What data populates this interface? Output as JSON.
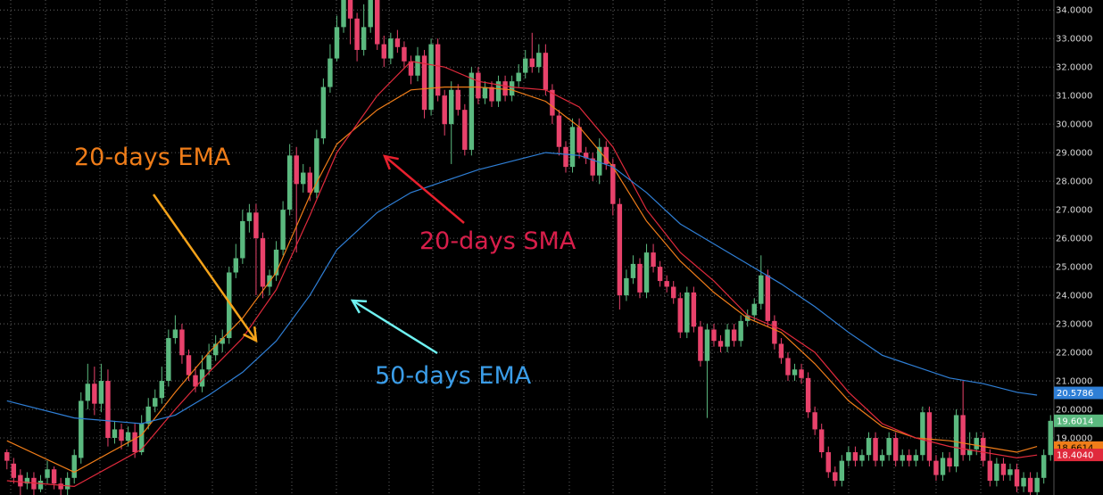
{
  "chart_data": {
    "type": "candlestick",
    "grid": true,
    "y_axis_side": "right",
    "ylim": [
      17.0,
      34.35
    ],
    "y_ticks": [
      {
        "value": 34,
        "label": "34.0000"
      },
      {
        "value": 33,
        "label": "33.0000"
      },
      {
        "value": 32,
        "label": "32.0000"
      },
      {
        "value": 31,
        "label": "31.0000"
      },
      {
        "value": 30,
        "label": "30.0000"
      },
      {
        "value": 29,
        "label": "29.0000"
      },
      {
        "value": 28,
        "label": "28.0000"
      },
      {
        "value": 27,
        "label": "27.0000"
      },
      {
        "value": 26,
        "label": "26.0000"
      },
      {
        "value": 25,
        "label": "25.0000"
      },
      {
        "value": 24,
        "label": "24.0000"
      },
      {
        "value": 23,
        "label": "23.0000"
      },
      {
        "value": 22,
        "label": "22.0000"
      },
      {
        "value": 21,
        "label": "21.0000"
      },
      {
        "value": 20,
        "label": "20.0000"
      },
      {
        "value": 19,
        "label": "19.0000"
      }
    ],
    "colors": {
      "up": "#5bb97f",
      "down": "#e8426b",
      "grid": "#d8d8d8",
      "sma20": "#e02a3c",
      "ema20": "#f07d19",
      "ema50": "#2f7fd6",
      "arrow_ema20": "#f5a31a",
      "arrow_sma20": "#e8202e",
      "arrow_ema50": "#6ff2f2"
    },
    "candles": [
      [
        18.5,
        18.2,
        18.6,
        17.9
      ],
      [
        18.1,
        17.6,
        18.3,
        17.4
      ],
      [
        17.7,
        17.3,
        17.9,
        17.0
      ],
      [
        17.4,
        17.6,
        17.8,
        17.2
      ],
      [
        17.6,
        17.2,
        17.8,
        17.0
      ],
      [
        17.2,
        17.5,
        17.7,
        17.1
      ],
      [
        17.6,
        17.9,
        18.2,
        17.4
      ],
      [
        17.9,
        17.4,
        18.0,
        17.2
      ],
      [
        17.4,
        17.2,
        17.6,
        17.0
      ],
      [
        17.2,
        17.6,
        17.8,
        17.0
      ],
      [
        17.6,
        18.4,
        18.6,
        17.4
      ],
      [
        18.3,
        20.3,
        20.6,
        18.1
      ],
      [
        20.3,
        20.9,
        21.6,
        20.0
      ],
      [
        20.9,
        20.2,
        21.5,
        19.8
      ],
      [
        20.2,
        21.0,
        21.6,
        19.9
      ],
      [
        21.0,
        19.0,
        21.4,
        18.7
      ],
      [
        19.0,
        19.3,
        19.6,
        18.8
      ],
      [
        19.3,
        18.9,
        19.5,
        18.6
      ],
      [
        18.9,
        19.2,
        19.4,
        18.7
      ],
      [
        19.2,
        18.5,
        19.5,
        18.3
      ],
      [
        18.5,
        19.5,
        19.8,
        18.4
      ],
      [
        19.5,
        20.1,
        20.4,
        19.3
      ],
      [
        20.1,
        20.4,
        20.7,
        19.9
      ],
      [
        20.4,
        21.0,
        21.5,
        20.2
      ],
      [
        21.0,
        22.5,
        22.8,
        20.8
      ],
      [
        22.5,
        22.8,
        23.3,
        22.3
      ],
      [
        22.8,
        21.9,
        23.0,
        21.6
      ],
      [
        21.9,
        21.2,
        22.1,
        21.0
      ],
      [
        21.2,
        20.8,
        21.5,
        20.6
      ],
      [
        20.8,
        21.4,
        21.9,
        20.6
      ],
      [
        21.4,
        21.9,
        22.3,
        21.2
      ],
      [
        21.9,
        22.3,
        22.6,
        21.7
      ],
      [
        22.3,
        22.5,
        22.8,
        22.0
      ],
      [
        22.5,
        24.8,
        25.0,
        22.3
      ],
      [
        24.8,
        25.3,
        25.8,
        24.6
      ],
      [
        25.3,
        26.6,
        27.0,
        25.1
      ],
      [
        26.6,
        26.9,
        27.2,
        26.2
      ],
      [
        26.9,
        26.0,
        27.2,
        24.0
      ],
      [
        26.0,
        24.3,
        26.2,
        23.9
      ],
      [
        24.3,
        24.7,
        24.9,
        24.0
      ],
      [
        24.7,
        25.6,
        25.9,
        24.5
      ],
      [
        25.6,
        27.0,
        27.3,
        25.4
      ],
      [
        27.0,
        28.9,
        29.3,
        26.8
      ],
      [
        28.9,
        27.9,
        29.2,
        25.5
      ],
      [
        27.9,
        28.3,
        28.6,
        27.6
      ],
      [
        28.3,
        27.6,
        28.5,
        27.3
      ],
      [
        27.6,
        29.5,
        29.8,
        27.4
      ],
      [
        29.5,
        31.3,
        31.6,
        29.3
      ],
      [
        31.3,
        32.3,
        32.8,
        31.1
      ],
      [
        32.3,
        33.4,
        33.8,
        32.2
      ],
      [
        33.4,
        34.5,
        34.8,
        33.2
      ],
      [
        34.5,
        33.7,
        34.7,
        32.8
      ],
      [
        33.7,
        32.6,
        33.9,
        32.2
      ],
      [
        32.6,
        33.4,
        34.2,
        32.4
      ],
      [
        33.4,
        34.8,
        35.0,
        33.2
      ],
      [
        34.8,
        32.8,
        35.0,
        32.6
      ],
      [
        32.8,
        32.3,
        33.1,
        32.0
      ],
      [
        32.3,
        33.0,
        33.2,
        32.1
      ],
      [
        33.0,
        32.7,
        33.3,
        32.5
      ],
      [
        32.7,
        32.2,
        32.9,
        32.0
      ],
      [
        32.2,
        31.7,
        32.4,
        31.4
      ],
      [
        31.7,
        32.4,
        32.7,
        31.5
      ],
      [
        32.4,
        30.5,
        32.6,
        30.2
      ],
      [
        30.5,
        32.8,
        33.0,
        30.3
      ],
      [
        32.8,
        31.0,
        33.0,
        30.8
      ],
      [
        31.0,
        30.0,
        31.2,
        29.6
      ],
      [
        30.0,
        31.2,
        31.5,
        28.6
      ],
      [
        31.2,
        30.5,
        31.4,
        30.3
      ],
      [
        30.5,
        29.1,
        30.7,
        28.9
      ],
      [
        29.1,
        31.8,
        32.0,
        28.9
      ],
      [
        31.8,
        30.9,
        32.0,
        30.7
      ],
      [
        30.9,
        31.3,
        31.5,
        30.7
      ],
      [
        31.3,
        30.8,
        31.5,
        30.6
      ],
      [
        30.8,
        31.5,
        31.7,
        30.6
      ],
      [
        31.5,
        31.0,
        31.7,
        30.8
      ],
      [
        31.0,
        31.5,
        31.7,
        30.8
      ],
      [
        31.5,
        31.8,
        32.1,
        31.3
      ],
      [
        31.8,
        32.3,
        32.6,
        31.6
      ],
      [
        32.3,
        32.0,
        33.2,
        31.8
      ],
      [
        32.0,
        32.5,
        32.8,
        31.8
      ],
      [
        32.5,
        31.2,
        32.8,
        31.0
      ],
      [
        31.2,
        30.3,
        31.4,
        30.0
      ],
      [
        30.3,
        29.2,
        30.5,
        28.9
      ],
      [
        29.2,
        28.5,
        29.4,
        28.3
      ],
      [
        28.5,
        29.9,
        30.2,
        28.3
      ],
      [
        29.9,
        29.0,
        30.2,
        28.8
      ],
      [
        29.0,
        28.8,
        29.2,
        28.6
      ],
      [
        28.8,
        28.2,
        29.0,
        28.0
      ],
      [
        28.2,
        29.2,
        29.5,
        27.9
      ],
      [
        29.2,
        28.6,
        29.4,
        28.4
      ],
      [
        28.6,
        27.2,
        28.8,
        26.8
      ],
      [
        27.2,
        24.0,
        27.4,
        23.5
      ],
      [
        24.0,
        24.6,
        24.9,
        23.8
      ],
      [
        24.6,
        25.1,
        25.4,
        24.4
      ],
      [
        25.1,
        24.1,
        25.3,
        23.9
      ],
      [
        24.1,
        25.5,
        25.8,
        23.9
      ],
      [
        25.5,
        25.0,
        25.8,
        24.8
      ],
      [
        25.0,
        24.5,
        25.2,
        24.3
      ],
      [
        24.5,
        24.3,
        24.7,
        24.1
      ],
      [
        24.3,
        23.9,
        24.5,
        23.7
      ],
      [
        23.9,
        22.7,
        24.1,
        22.5
      ],
      [
        22.7,
        24.1,
        24.3,
        22.5
      ],
      [
        24.1,
        22.9,
        24.3,
        22.7
      ],
      [
        22.9,
        21.7,
        23.1,
        21.5
      ],
      [
        21.7,
        22.8,
        23.0,
        19.7
      ],
      [
        22.8,
        22.4,
        23.0,
        22.2
      ],
      [
        22.4,
        22.2,
        22.6,
        22.0
      ],
      [
        22.2,
        22.8,
        23.0,
        22.0
      ],
      [
        22.8,
        22.4,
        23.0,
        22.2
      ],
      [
        22.4,
        23.1,
        23.3,
        22.2
      ],
      [
        23.1,
        23.3,
        23.5,
        22.9
      ],
      [
        23.3,
        23.7,
        23.9,
        23.1
      ],
      [
        23.7,
        24.7,
        25.4,
        23.5
      ],
      [
        24.7,
        23.1,
        24.9,
        22.9
      ],
      [
        23.1,
        22.3,
        23.3,
        22.1
      ],
      [
        22.3,
        21.8,
        22.5,
        21.6
      ],
      [
        21.8,
        21.2,
        22.0,
        21.0
      ],
      [
        21.2,
        21.4,
        21.6,
        21.0
      ],
      [
        21.4,
        21.1,
        21.6,
        20.9
      ],
      [
        21.1,
        19.9,
        21.3,
        19.7
      ],
      [
        19.9,
        19.3,
        20.1,
        19.1
      ],
      [
        19.3,
        18.5,
        19.5,
        18.3
      ],
      [
        18.5,
        17.8,
        18.7,
        17.6
      ],
      [
        17.8,
        17.5,
        18.0,
        17.3
      ],
      [
        17.5,
        18.2,
        18.4,
        17.3
      ],
      [
        18.2,
        18.5,
        18.7,
        18.0
      ],
      [
        18.5,
        18.2,
        18.7,
        18.0
      ],
      [
        18.2,
        18.4,
        18.6,
        18.0
      ],
      [
        18.4,
        19.0,
        19.2,
        18.2
      ],
      [
        19.0,
        18.2,
        19.2,
        18.0
      ],
      [
        18.2,
        18.4,
        18.6,
        18.0
      ],
      [
        18.4,
        19.0,
        19.2,
        18.2
      ],
      [
        19.0,
        18.2,
        19.2,
        18.0
      ],
      [
        18.2,
        18.4,
        18.6,
        18.0
      ],
      [
        18.4,
        18.2,
        18.6,
        18.0
      ],
      [
        18.2,
        18.4,
        18.6,
        18.0
      ],
      [
        18.4,
        19.9,
        20.1,
        18.2
      ],
      [
        19.9,
        18.2,
        20.1,
        18.0
      ],
      [
        18.2,
        17.7,
        18.4,
        17.5
      ],
      [
        17.7,
        18.3,
        18.5,
        17.5
      ],
      [
        18.3,
        18.0,
        18.5,
        17.8
      ],
      [
        18.0,
        19.8,
        20.0,
        17.8
      ],
      [
        19.8,
        18.4,
        21.0,
        18.2
      ],
      [
        18.4,
        18.6,
        19.2,
        18.2
      ],
      [
        18.6,
        19.0,
        19.2,
        18.4
      ],
      [
        19.0,
        18.2,
        19.2,
        18.0
      ],
      [
        18.2,
        17.5,
        18.6,
        17.3
      ],
      [
        17.5,
        18.1,
        18.3,
        17.3
      ],
      [
        18.1,
        17.7,
        18.3,
        17.5
      ],
      [
        17.7,
        17.9,
        18.1,
        17.5
      ],
      [
        17.9,
        17.3,
        18.1,
        17.1
      ],
      [
        17.3,
        17.6,
        17.8,
        17.1
      ],
      [
        17.6,
        17.1,
        17.8,
        16.9
      ],
      [
        17.1,
        17.6,
        17.8,
        16.9
      ],
      [
        17.6,
        18.4,
        18.6,
        17.4
      ],
      [
        18.4,
        19.6,
        19.8,
        18.2
      ]
    ],
    "ma_series": [
      {
        "key": "ema20",
        "x": [
          0,
          10,
          20,
          25,
          30,
          35,
          40,
          45,
          49,
          55,
          60,
          65,
          70,
          75,
          80,
          85,
          90,
          95,
          100,
          105,
          110,
          115,
          120,
          125,
          130,
          135,
          140,
          145,
          150,
          153
        ],
        "y": [
          18.9,
          17.8,
          19.1,
          20.6,
          22.0,
          23.2,
          24.8,
          27.5,
          29.3,
          30.5,
          31.2,
          31.3,
          31.3,
          31.2,
          30.8,
          29.9,
          28.5,
          26.6,
          25.2,
          24.1,
          23.2,
          22.7,
          21.6,
          20.3,
          19.4,
          19.0,
          18.9,
          18.7,
          18.5,
          18.7
        ]
      },
      {
        "key": "sma20",
        "x": [
          0,
          10,
          20,
          25,
          30,
          35,
          40,
          45,
          49,
          55,
          60,
          65,
          70,
          75,
          80,
          85,
          90,
          95,
          100,
          105,
          110,
          115,
          120,
          125,
          130,
          135,
          140,
          145,
          150,
          153
        ],
        "y": [
          17.5,
          17.3,
          18.6,
          20.0,
          21.3,
          22.5,
          24.2,
          26.8,
          29.0,
          31.0,
          32.2,
          32.0,
          31.5,
          31.3,
          31.2,
          30.6,
          29.2,
          27.0,
          25.5,
          24.5,
          23.3,
          22.8,
          22.0,
          20.6,
          19.5,
          19.0,
          18.7,
          18.5,
          18.3,
          18.4
        ]
      },
      {
        "key": "ema50",
        "x": [
          0,
          10,
          20,
          25,
          30,
          35,
          40,
          45,
          49,
          55,
          60,
          65,
          70,
          75,
          80,
          85,
          90,
          95,
          100,
          105,
          110,
          115,
          120,
          125,
          130,
          135,
          140,
          145,
          150,
          153
        ],
        "y": [
          20.3,
          19.7,
          19.5,
          19.8,
          20.5,
          21.3,
          22.4,
          24.0,
          25.6,
          26.9,
          27.6,
          28.0,
          28.4,
          28.7,
          29.0,
          28.9,
          28.5,
          27.6,
          26.5,
          25.8,
          25.1,
          24.4,
          23.6,
          22.7,
          21.9,
          21.5,
          21.1,
          20.9,
          20.6,
          20.5
        ]
      }
    ],
    "annotations": [
      {
        "key": "ema20",
        "text": "20-days EMA"
      },
      {
        "key": "sma20",
        "text": "20-days SMA"
      },
      {
        "key": "ema50",
        "text": "50-days EMA"
      }
    ],
    "price_badges": [
      {
        "value": 20.5786,
        "label": "20.5786",
        "bg": "#2f7fd6",
        "fg": "#ffffff"
      },
      {
        "value": 19.6014,
        "label": "19.6014",
        "bg": "#5bb97f",
        "fg": "#ffffff"
      },
      {
        "value": 18.6614,
        "label": "18.6614",
        "bg": "#f07d19",
        "fg": "#000000"
      },
      {
        "value": 18.404,
        "label": "18.4040",
        "bg": "#e02a3c",
        "fg": "#ffffff"
      }
    ]
  }
}
